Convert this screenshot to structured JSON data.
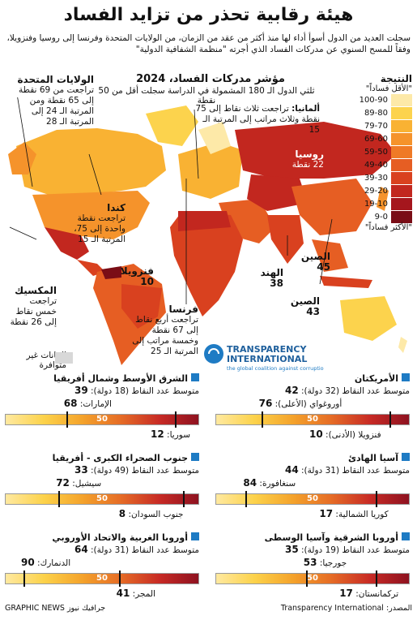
{
  "title": "هيئة رقابية تحذر من تزايد الفساد",
  "subtitle": "سجلت العديد من الدول أسوأ أداء لها منذ أكثر من عقد من الزمان، من الولايات المتحدة وفرنسا إلى روسيا وفنزويلا، وفقاً للمسح السنوي عن مدركات  الفساد الذي أجرته \"منظمة الشفافية الدولية\"",
  "map": {
    "title": "مؤشر مدركات الفساد، 2024",
    "subtitle": "ثلثي الدول الـ 180 المشمولة في الدراسة سجلت أقل من 50 نقطة",
    "labels": {
      "usa": {
        "name": "الولايات المتحدة",
        "text": "تراجعت من 69 نقطة إلى 65 نقطة ومن المرتبة الـ 24 إلى المرتبة الـ 28"
      },
      "canada": {
        "name": "كندا",
        "text": "تراجعت نقطة واحدة إلى 75، المرتبة الـ 15"
      },
      "mexico": {
        "name": "المكسيك",
        "text": "تراجعت خمس نقاط إلى 26 نقطة"
      },
      "venezuela": {
        "name": "فنزويلا",
        "value": "10"
      },
      "france": {
        "name": "فرنسا",
        "text": "تراجعت أربع نقاط إلى 67 نقطة وخمسة مراتب إلى المرتبة الـ 25"
      },
      "germany": {
        "name": "ألمانيا:",
        "text": "تراجعت ثلاث نقاط إلى 75 نقطة وثلاث مراتب إلى المرتبة الـ 15"
      },
      "russia": {
        "name": "روسيا",
        "value": "22 نقطة"
      },
      "india": {
        "name": "الهند",
        "value": "38"
      },
      "china": {
        "name": "الصين",
        "value": "43"
      },
      "china2": {
        "name": "الصين",
        "value": "45"
      }
    },
    "nodata": "البيانات غير متوافرة",
    "ti_name": "TRANSPARENCY INTERNATIONAL",
    "ti_tag": "the global coalition against corruption"
  },
  "legend": {
    "title": "النتيجة",
    "top": "\"الأقل فساداً\"",
    "bottom": "\"الأكثر فساداً\"",
    "bins": [
      {
        "label": "100-90",
        "color": "#fde9a8"
      },
      {
        "label": "89-80",
        "color": "#fcd34d"
      },
      {
        "label": "79-70",
        "color": "#f9b233"
      },
      {
        "label": "69-60",
        "color": "#f5932b"
      },
      {
        "label": "59-50",
        "color": "#ef7a26"
      },
      {
        "label": "49-40",
        "color": "#e65e23"
      },
      {
        "label": "39-30",
        "color": "#d9411f"
      },
      {
        "label": "29-20",
        "color": "#c2271f"
      },
      {
        "label": "19-10",
        "color": "#a5161d"
      },
      {
        "label": "9-0",
        "color": "#7a0d16"
      }
    ]
  },
  "chart_data": {
    "type": "bar",
    "title": "مؤشر مدركات الفساد، 2024",
    "scale": [
      0,
      100
    ],
    "midpoint": 50,
    "regions": [
      {
        "name": "الأمريكتان",
        "avg_label": "متوسط عدد النقاط (32 دولة):",
        "avg": 42,
        "high": {
          "label": "أوروغواي (الأعلى):",
          "value": 76
        },
        "low": {
          "label": "فنزويلا (الأدنى):",
          "value": 10
        }
      },
      {
        "name": "الشرق الأوسط وشمال أفريقيا",
        "avg_label": "متوسط عدد النقاط (18 دولة):",
        "avg": 39,
        "high": {
          "label": "الإمارات:",
          "value": 68
        },
        "low": {
          "label": "سوريا:",
          "value": 12
        }
      },
      {
        "name": "آسيا الهادئ",
        "avg_label": "متوسط عدد النقاط (31 دولة):",
        "avg": 44,
        "high": {
          "label": "سنغافورة:",
          "value": 84
        },
        "low": {
          "label": "كوريا الشمالية:",
          "value": 17
        }
      },
      {
        "name": "جنوب الصحراء الكبرى - أفريقيا",
        "avg_label": "متوسط عدد النقاط (49 دولة):",
        "avg": 33,
        "high": {
          "label": "سيشيل:",
          "value": 72
        },
        "low": {
          "label": "جنوب السودان:",
          "value": 8
        }
      },
      {
        "name": "أوروبا الشرقية وآسيا الوسطى",
        "avg_label": "متوسط عدد النقاط (19 دولة):",
        "avg": 35,
        "high": {
          "label": "جورجيا:",
          "value": 53
        },
        "low": {
          "label": "تركمانستان:",
          "value": 17
        }
      },
      {
        "name": "أوروبا الغربية والاتحاد الأوروبي",
        "avg_label": "متوسط عدد النقاط (31 دولة):",
        "avg": 64,
        "high": {
          "label": "الدنمارك:",
          "value": 90
        },
        "low": {
          "label": "المجر:",
          "value": 41
        }
      }
    ]
  },
  "footer": {
    "source": "المصدر: Transparency International",
    "credit": "GRAPHIC NEWS جرافيك نيوز"
  }
}
